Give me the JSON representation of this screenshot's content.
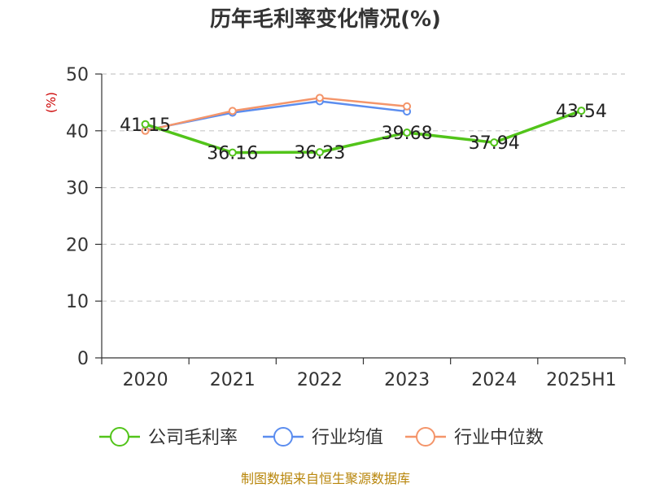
{
  "chart_data": {
    "type": "line",
    "title": "历年毛利率变化情况(%)",
    "ylabel": "(%)",
    "xlabel": "",
    "categories": [
      "2020",
      "2021",
      "2022",
      "2023",
      "2024",
      "2025H1"
    ],
    "ylim": [
      0,
      50
    ],
    "yticks": [
      0,
      10,
      20,
      30,
      40,
      50
    ],
    "grid": true,
    "legend_position": "bottom",
    "series": [
      {
        "name": "公司毛利率",
        "color": "#52c41a",
        "values": [
          41.15,
          36.16,
          36.23,
          39.68,
          37.94,
          43.54
        ],
        "labels": [
          "41.15",
          "36.16",
          "36.23",
          "39.68",
          "37.94",
          "43.54"
        ]
      },
      {
        "name": "行业均值",
        "color": "#5b8def",
        "values": [
          40.1,
          43.2,
          45.2,
          43.4,
          null,
          null
        ]
      },
      {
        "name": "行业中位数",
        "color": "#f4956a",
        "values": [
          40.0,
          43.5,
          45.8,
          44.3,
          null,
          null
        ]
      }
    ],
    "source": "制图数据来自恒生聚源数据库"
  }
}
